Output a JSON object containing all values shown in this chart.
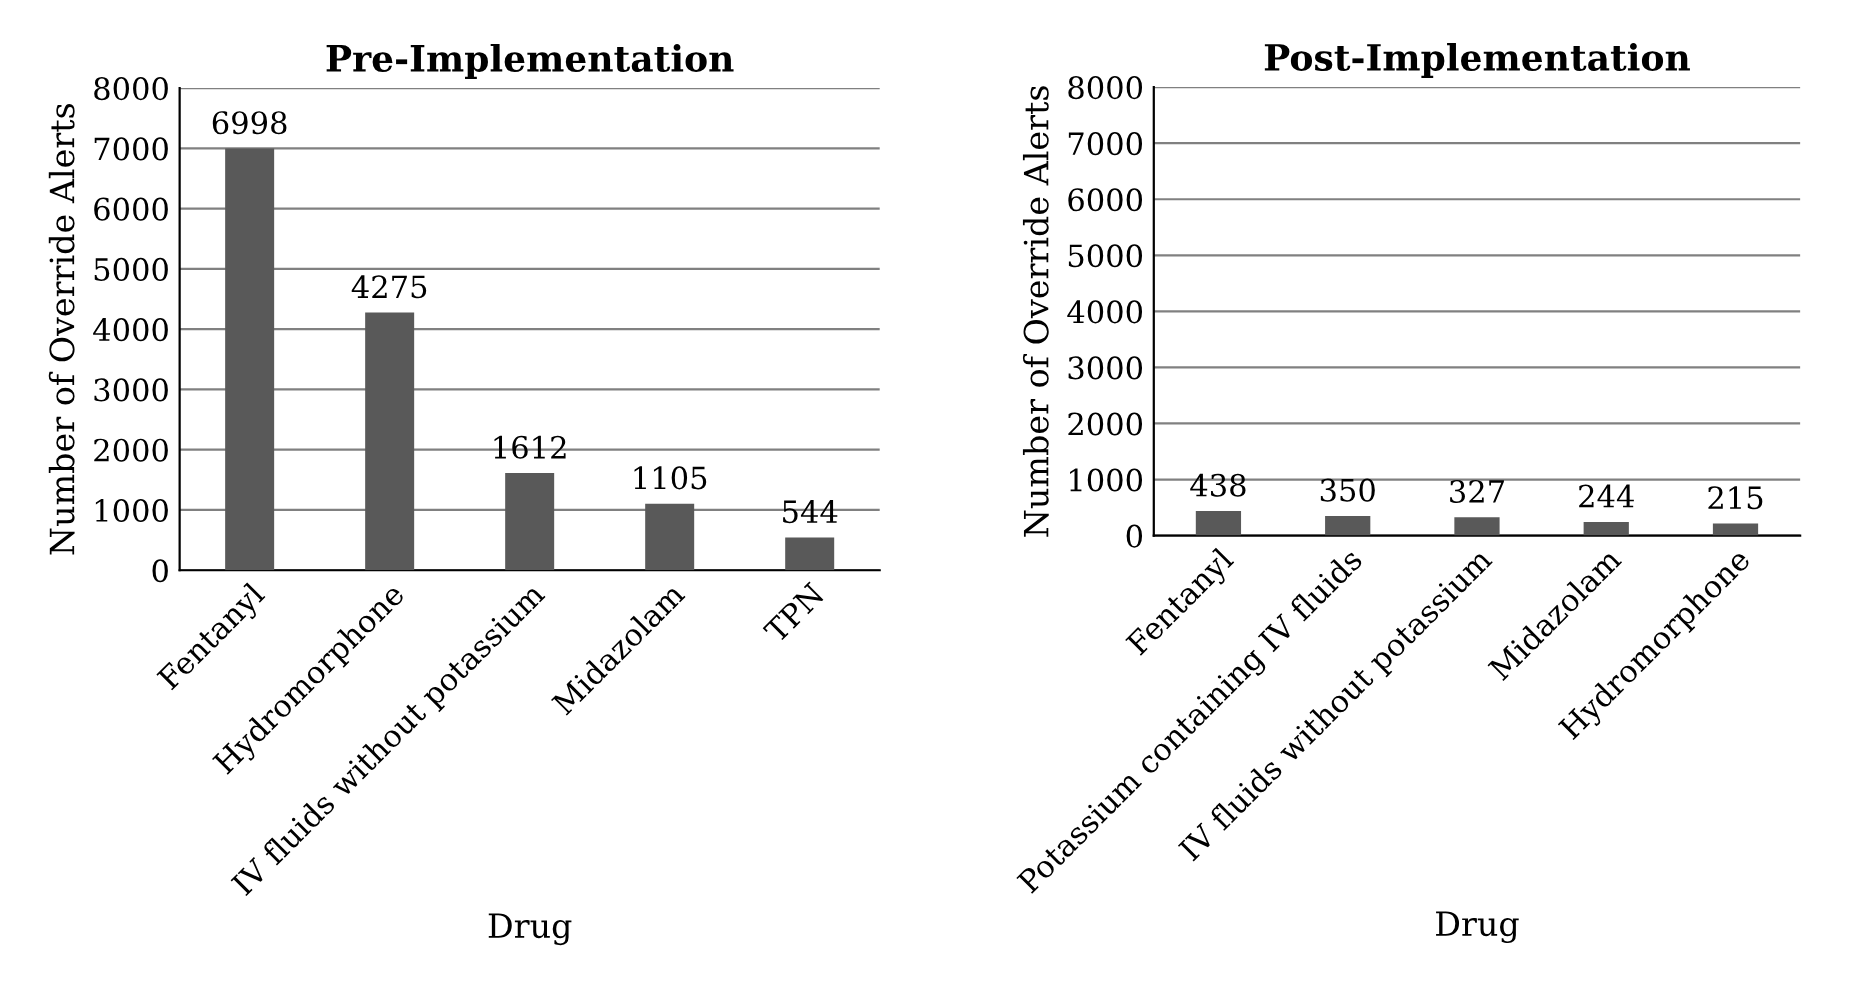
{
  "chart_data": [
    {
      "type": "bar",
      "title": "Pre-Implementation",
      "xlabel": "Drug",
      "ylabel": "Number of Override Alerts",
      "categories": [
        "Fentanyl",
        "Hydromorphone",
        "IV fluids without potassium",
        "Midazolam",
        "TPN"
      ],
      "values": [
        6998,
        4275,
        1612,
        1105,
        544
      ],
      "color": "#595959",
      "ylim": [
        0,
        8000
      ],
      "yticks": [
        0,
        1000,
        2000,
        3000,
        4000,
        5000,
        6000,
        7000,
        8000
      ],
      "grid": "y",
      "data_labels": true
    },
    {
      "type": "bar",
      "title": "Post-Implementation",
      "xlabel": "Drug",
      "ylabel": "Number of Override Alerts",
      "categories": [
        "Fentanyl",
        "Potassium containing IV fluids",
        "IV fluids without potassium",
        "Midazolam",
        "Hydromorphone"
      ],
      "values": [
        438,
        350,
        327,
        244,
        215
      ],
      "color": "#595959",
      "ylim": [
        0,
        8000
      ],
      "yticks": [
        0,
        1000,
        2000,
        3000,
        4000,
        5000,
        6000,
        7000,
        8000
      ],
      "grid": "y",
      "data_labels": true
    }
  ]
}
